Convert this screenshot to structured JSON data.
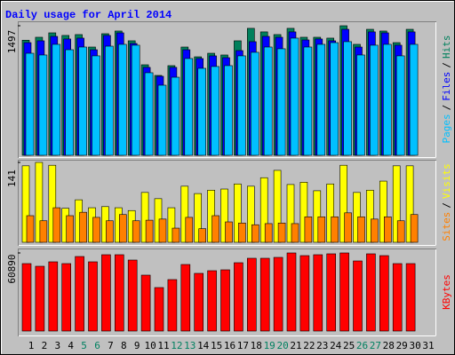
{
  "title": "Daily usage for April 2014",
  "categories": [
    "1",
    "2",
    "3",
    "4",
    "5",
    "6",
    "7",
    "8",
    "9",
    "10",
    "11",
    "12",
    "13",
    "14",
    "15",
    "16",
    "17",
    "18",
    "19",
    "20",
    "21",
    "22",
    "23",
    "24",
    "25",
    "26",
    "27",
    "28",
    "29",
    "30",
    "31"
  ],
  "label_color": "#000000",
  "weekend_label_color": "#008060",
  "weekend_categories": [
    "5",
    "6",
    "12",
    "13",
    "19",
    "20",
    "26",
    "27"
  ],
  "legend_separator": "/",
  "chart_data": [
    {
      "type": "bar",
      "ylim": [
        0,
        1497
      ],
      "yticks": [
        1497
      ],
      "series": [
        {
          "name": "Hits",
          "color": "#00805c",
          "values": [
            1330,
            1364,
            1415,
            1385,
            1395,
            1251,
            1405,
            1436,
            1323,
            1046,
            923,
            1036,
            1251,
            1138,
            1179,
            1159,
            1323,
            1467,
            1426,
            1395,
            1467,
            1364,
            1364,
            1354,
            1497,
            1282,
            1456,
            1436,
            1302,
            1456,
            null
          ]
        },
        {
          "name": "Files",
          "color": "#0000ff",
          "values": [
            1302,
            1323,
            1374,
            1344,
            1354,
            1220,
            1385,
            1415,
            1292,
            1016,
            913,
            1016,
            1220,
            1118,
            1149,
            1128,
            1210,
            1313,
            1374,
            1364,
            1426,
            1333,
            1344,
            1323,
            1456,
            1251,
            1426,
            1415,
            1272,
            1426,
            null
          ]
        },
        {
          "name": "Pages",
          "color": "#00c0ff",
          "values": [
            1179,
            1159,
            1282,
            1220,
            1251,
            1149,
            1261,
            1282,
            1272,
            954,
            810,
            902,
            1118,
            1005,
            1026,
            1036,
            1149,
            1190,
            1251,
            1231,
            1354,
            1251,
            1282,
            1302,
            1313,
            1159,
            1272,
            1282,
            1149,
            1282,
            null
          ]
        }
      ]
    },
    {
      "type": "bar",
      "ylim": [
        0,
        141
      ],
      "yticks": [
        141
      ],
      "series": [
        {
          "name": "Visits",
          "color": "#ffff00",
          "values": [
            135,
            141,
            136,
            60,
            75,
            61,
            63,
            61,
            56,
            88,
            77,
            61,
            99,
            86,
            92,
            94,
            103,
            99,
            114,
            127,
            102,
            106,
            91,
            103,
            136,
            88,
            92,
            108,
            135,
            135,
            null
          ]
        },
        {
          "name": "Sites",
          "color": "#ff8000",
          "values": [
            47,
            38,
            61,
            47,
            53,
            44,
            38,
            49,
            38,
            39,
            41,
            25,
            44,
            24,
            47,
            36,
            34,
            31,
            33,
            34,
            33,
            45,
            45,
            45,
            52,
            45,
            41,
            45,
            38,
            49,
            null
          ]
        }
      ]
    },
    {
      "type": "bar",
      "ylim": [
        0,
        60890
      ],
      "yticks": [
        60890
      ],
      "series": [
        {
          "name": "KBytes",
          "color": "#ff0000",
          "values": [
            52590,
            50510,
            53970,
            52590,
            58120,
            53970,
            59510,
            59510,
            55350,
            43590,
            33910,
            40130,
            51890,
            44980,
            47050,
            47740,
            53280,
            56740,
            56740,
            57430,
            60890,
            58810,
            59510,
            60200,
            60890,
            54660,
            60200,
            58810,
            52590,
            52590,
            null
          ]
        }
      ]
    }
  ]
}
